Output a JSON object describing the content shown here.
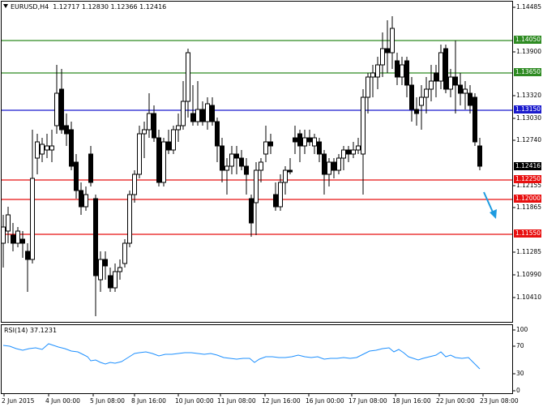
{
  "chart_title": "EURUSD,H4  1.12717 1.12830 1.12366 1.12416",
  "rsi_title": "RSI(14) 37.1231",
  "price_axis": {
    "labels": [
      "1.14485",
      "1.13900",
      "1.13320",
      "1.13030",
      "1.12740",
      "1.12155",
      "1.11865",
      "1.11285",
      "1.10990",
      "1.10410"
    ]
  },
  "level_lines": [
    {
      "value": "1.14050",
      "color": "#2e8b22",
      "badge_text_color": "#ffffff"
    },
    {
      "value": "1.13650",
      "color": "#2e8b22",
      "badge_text_color": "#ffffff"
    },
    {
      "value": "1.13150",
      "color": "#1a1acd",
      "badge_text_color": "#ffffff"
    },
    {
      "value": "1.12250",
      "color": "#e81010",
      "badge_text_color": "#ffffff"
    },
    {
      "value": "1.12000",
      "color": "#e81010",
      "badge_text_color": "#ffffff"
    },
    {
      "value": "1.11550",
      "color": "#e81010",
      "badge_text_color": "#ffffff"
    }
  ],
  "current_price": {
    "value": "1.12416",
    "color": "#000000"
  },
  "rsi_axis": {
    "labels": [
      "100",
      "70",
      "30",
      "0"
    ]
  },
  "time_axis": {
    "labels": [
      "2 Jun 2015",
      "4 Jun 00:00",
      "5 Jun 08:00",
      "8 Jun 16:00",
      "10 Jun 00:00",
      "11 Jun 08:00",
      "12 Jun 16:00",
      "16 Jun 00:00",
      "17 Jun 08:00",
      "18 Jun 16:00",
      "22 Jun 00:00",
      "23 Jun 08:00"
    ]
  },
  "annotation": {
    "type": "arrow",
    "color": "#1e9be0",
    "direction": "down-right"
  },
  "rsi_color": "#1e90ff"
}
